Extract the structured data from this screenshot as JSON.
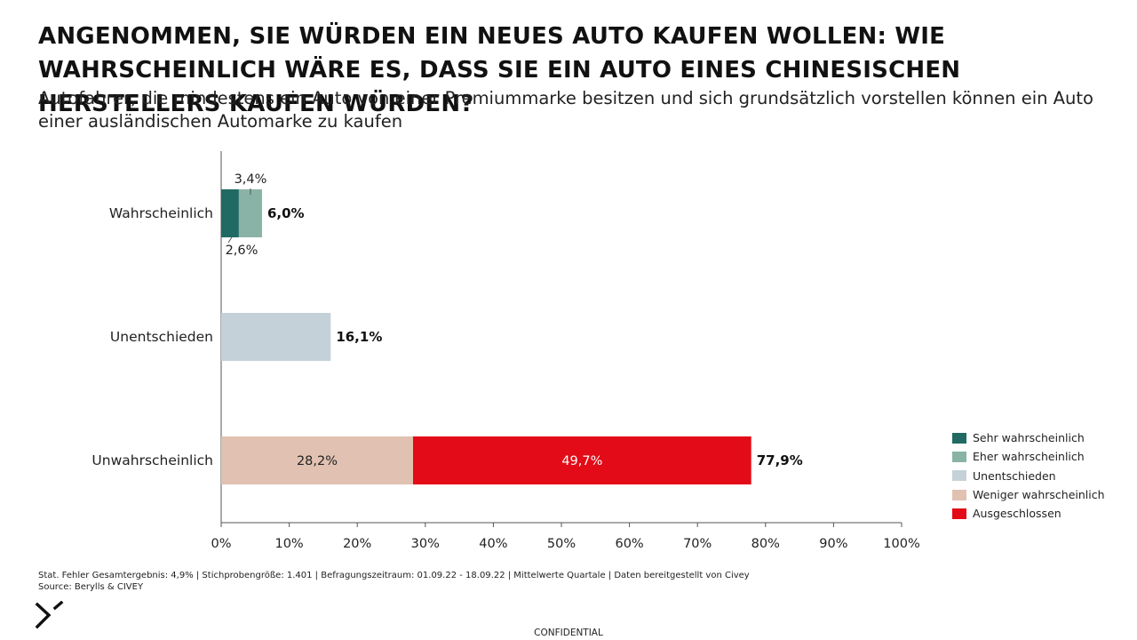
{
  "title": "ANGENOMMEN, SIE WÜRDEN EIN NEUES AUTO KAUFEN WOLLEN: WIE WAHRSCHEINLICH WÄRE ES, DASS SIE EIN AUTO EINES CHINESISCHEN HERSTELLERS KAUFEN WÜRDEN?",
  "subtitle": "Autofahrer, die mindestens ein Auto von einer Premiummarke besitzen und sich grundsätzlich vorstellen können ein Auto einer ausländischen Automarke zu kaufen",
  "chart_data": {
    "type": "bar",
    "orientation": "horizontal",
    "stacked": true,
    "categories": [
      "Wahrscheinlich",
      "Unentschieden",
      "Unwahrscheinlich"
    ],
    "series": [
      {
        "name": "Sehr wahrscheinlich",
        "color": "#206a63",
        "values": [
          2.6,
          0,
          0
        ],
        "labels": [
          "2,6%",
          "",
          ""
        ]
      },
      {
        "name": "Eher wahrscheinlich",
        "color": "#8ab3a7",
        "values": [
          3.4,
          0,
          0
        ],
        "labels": [
          "3,4%",
          "",
          ""
        ]
      },
      {
        "name": "Unentschieden",
        "color": "#c5d1d8",
        "values": [
          0,
          16.1,
          0
        ],
        "labels": [
          "",
          "",
          ""
        ]
      },
      {
        "name": "Weniger wahrscheinlich",
        "color": "#e1c1b1",
        "values": [
          0,
          0,
          28.2
        ],
        "labels": [
          "",
          "",
          "28,2%"
        ]
      },
      {
        "name": "Ausgeschlossen",
        "color": "#e30b17",
        "values": [
          0,
          0,
          49.7
        ],
        "labels": [
          "",
          "",
          "49,7%"
        ]
      }
    ],
    "totals": [
      "6,0%",
      "16,1%",
      "77,9%"
    ],
    "xlim": [
      0,
      100
    ],
    "xticks": [
      "0%",
      "10%",
      "20%",
      "30%",
      "40%",
      "50%",
      "60%",
      "70%",
      "80%",
      "90%",
      "100%"
    ],
    "grid": false,
    "legend_position": "right"
  },
  "footnote": {
    "line1": "Stat. Fehler Gesamtergebnis: 4,9% | Stichprobengröße: 1.401 | Befragungszeitraum: 01.09.22 - 18.09.22 | Mittelwerte Quartale | Daten bereitgestellt von Civey",
    "line2": "Source: Berylls & CIVEY"
  },
  "logo_icon": "berylls-logo-icon",
  "confidential": "CONFIDENTIAL"
}
